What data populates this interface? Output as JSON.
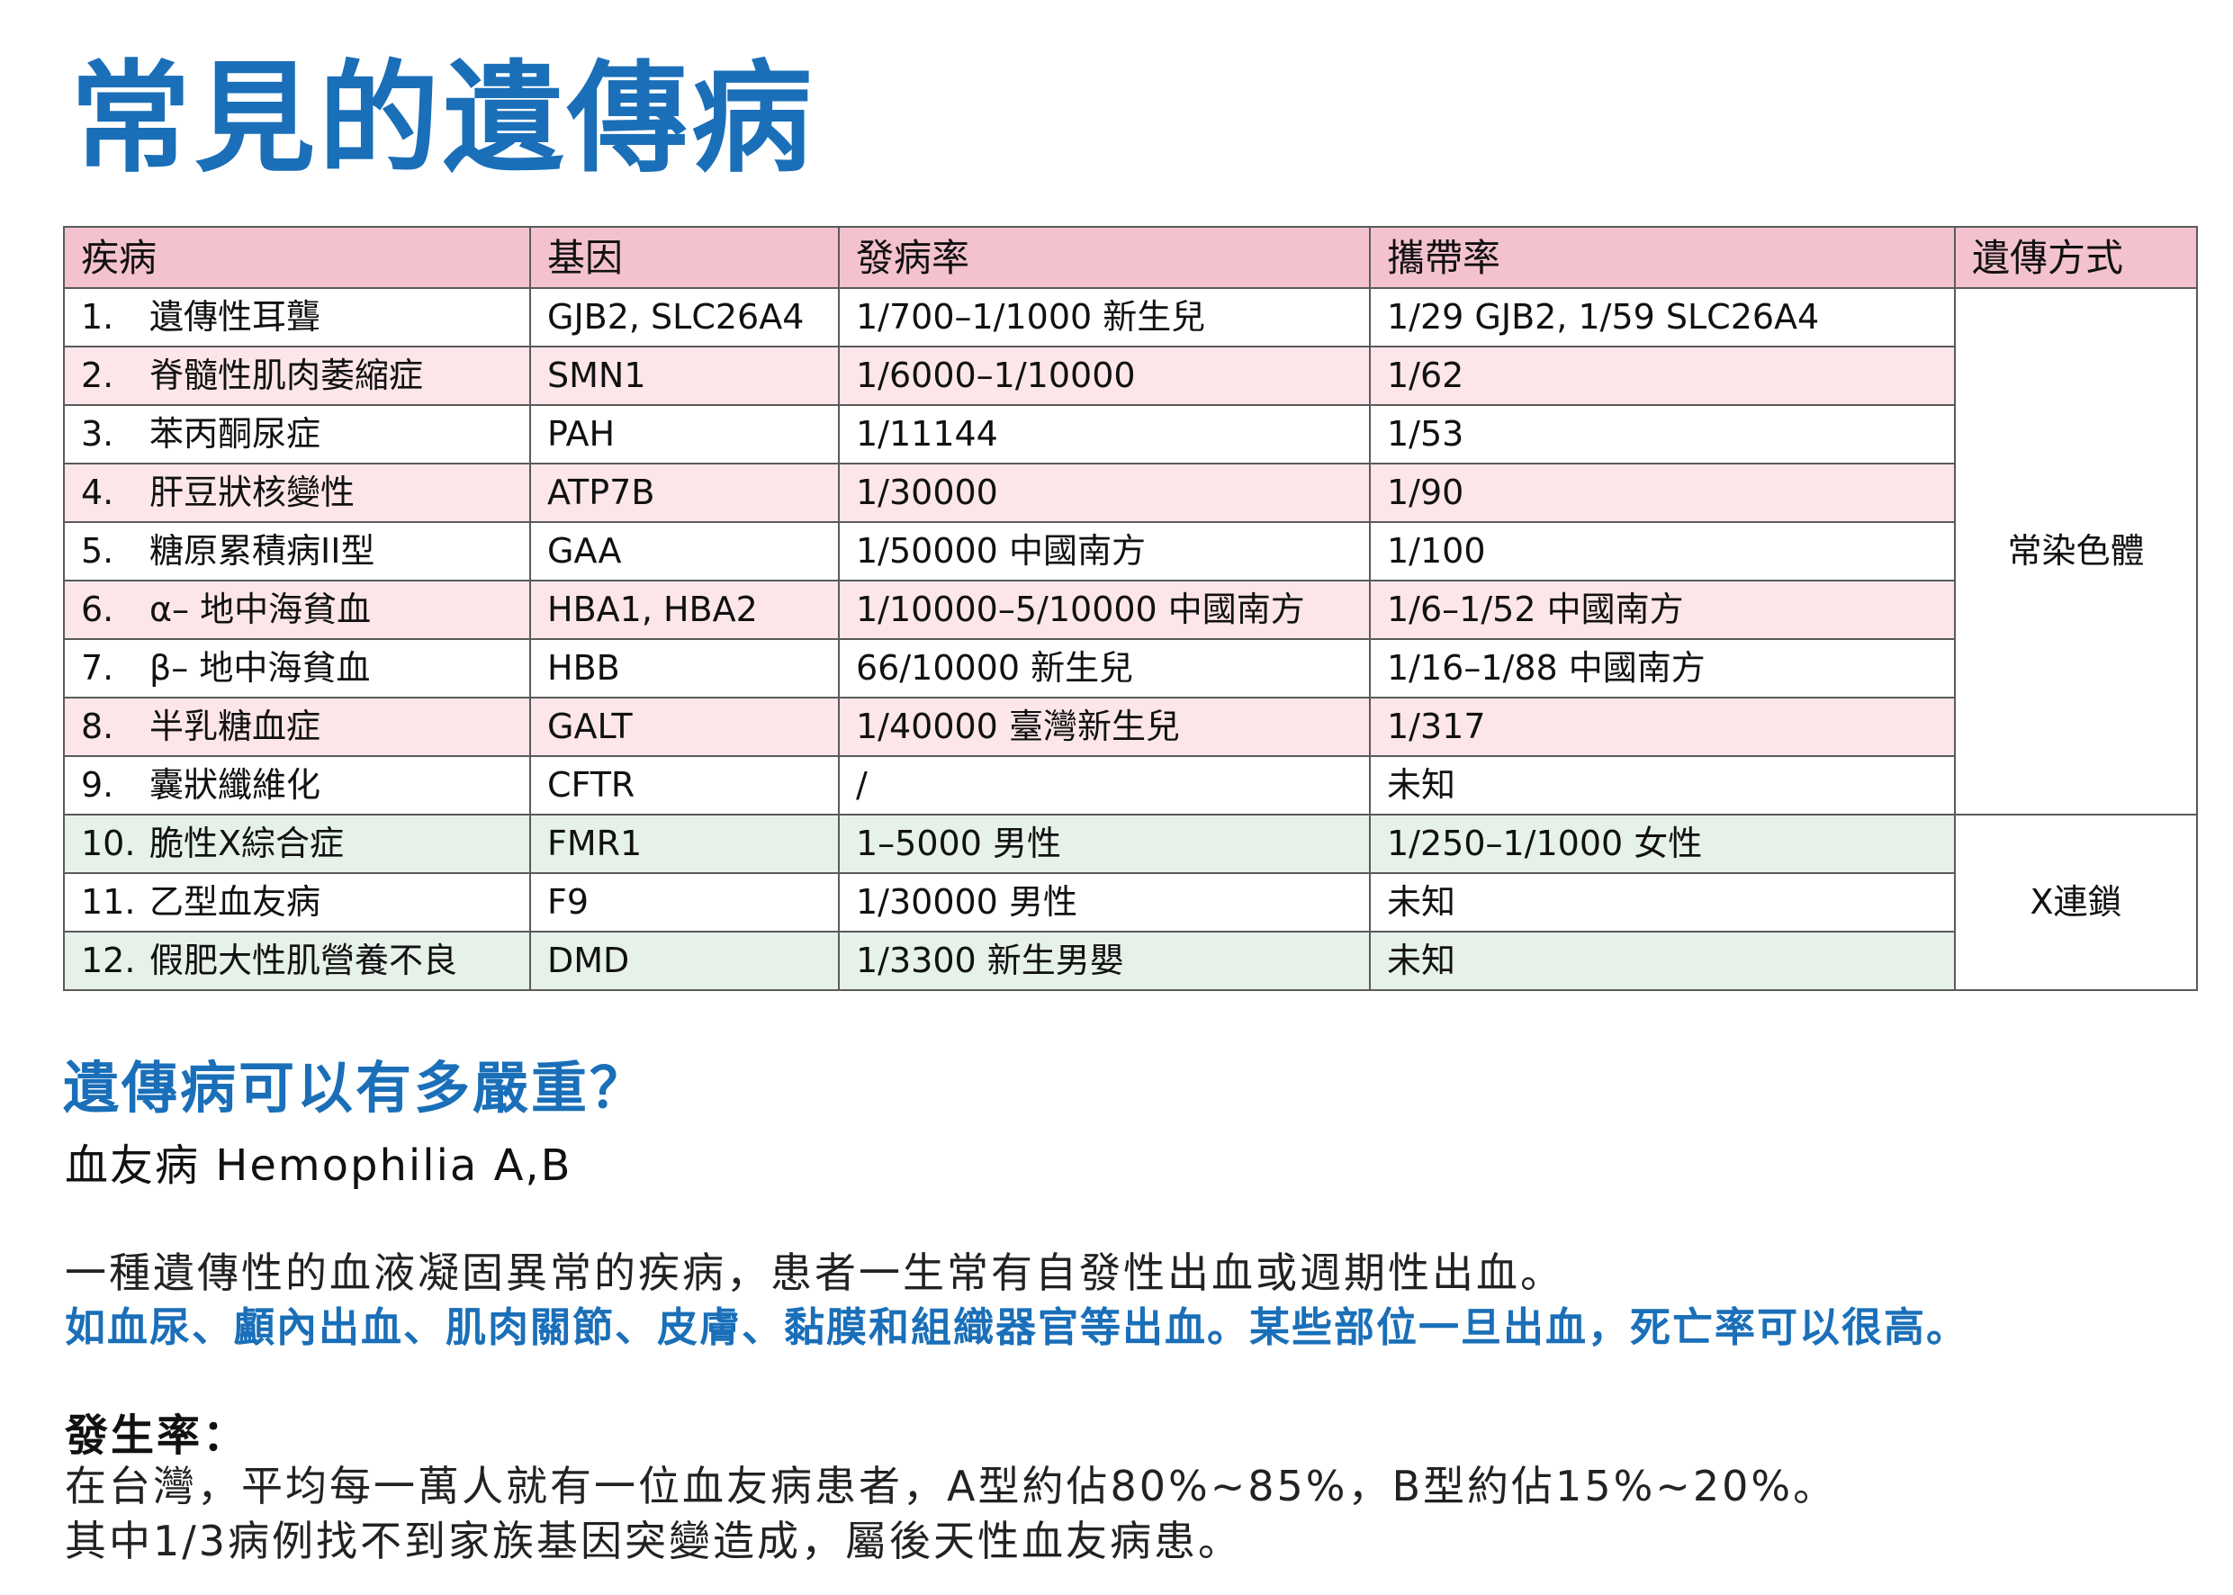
{
  "title": "常見的遺傳病",
  "table": {
    "headers": [
      "疾病",
      "基因",
      "發病率",
      "攜帶率",
      "遺傳方式"
    ],
    "rows": [
      {
        "num": "1.",
        "disease": "遺傳性耳聾",
        "gene": "GJB2, SLC26A4",
        "incidence": "1/700–1/1000 新生兒",
        "carrier": "1/29 GJB2, 1/59 SLC26A4"
      },
      {
        "num": "2.",
        "disease": "脊髓性肌肉萎縮症",
        "gene": "SMN1",
        "incidence": "1/6000–1/10000",
        "carrier": "1/62"
      },
      {
        "num": "3.",
        "disease": "苯丙酮尿症",
        "gene": "PAH",
        "incidence": "1/11144",
        "carrier": "1/53"
      },
      {
        "num": "4.",
        "disease": "肝豆狀核變性",
        "gene": "ATP7B",
        "incidence": "1/30000",
        "carrier": "1/90"
      },
      {
        "num": "5.",
        "disease": "糖原累積病II型",
        "gene": "GAA",
        "incidence": "1/50000 中國南方",
        "carrier": "1/100"
      },
      {
        "num": "6.",
        "disease": "α– 地中海貧血",
        "gene": "HBA1, HBA2",
        "incidence": "1/10000–5/10000 中國南方",
        "carrier": "1/6–1/52 中國南方"
      },
      {
        "num": "7.",
        "disease": "β– 地中海貧血",
        "gene": "HBB",
        "incidence": "66/10000 新生兒",
        "carrier": "1/16–1/88 中國南方"
      },
      {
        "num": "8.",
        "disease": "半乳糖血症",
        "gene": "GALT",
        "incidence": "1/40000 臺灣新生兒",
        "carrier": "1/317"
      },
      {
        "num": "9.",
        "disease": "囊狀纖維化",
        "gene": "CFTR",
        "incidence": "/",
        "carrier": "未知"
      },
      {
        "num": "10.",
        "disease": "脆性X綜合症",
        "gene": "FMR1",
        "incidence": "1–5000 男性",
        "carrier": "1/250–1/1000 女性"
      },
      {
        "num": "11.",
        "disease": "乙型血友病",
        "gene": "F9",
        "incidence": "1/30000 男性",
        "carrier": "未知"
      },
      {
        "num": "12.",
        "disease": "假肥大性肌營養不良",
        "gene": "DMD",
        "incidence": "1/3300 新生男嬰",
        "carrier": "未知"
      }
    ],
    "inheritance": {
      "autosomal": "常染色體",
      "x_linked": "X連鎖"
    }
  },
  "severity": {
    "heading": "遺傳病可以有多嚴重？",
    "subheading": "血友病 Hemophilia A,B",
    "description": "一種遺傳性的血液凝固異常的疾病，患者一生常有自發性出血或週期性出血。",
    "highlight": "如血尿、顱內出血、肌肉關節、皮膚、黏膜和組織器官等出血。某些部位一旦出血，死亡率可以很高。",
    "rate_label": "發生率：",
    "rate_line1": "在台灣，平均每一萬人就有一位血友病患者，A型約佔80%~85%，B型約佔15%~20%。",
    "rate_line2": "其中1/3病例找不到家族基因突變造成，屬後天性血友病患。"
  },
  "colors": {
    "title_blue": "#1a6fb8",
    "header_pink": "#f4c2cf",
    "row_pink": "#fde6e9",
    "row_green": "#e6f1e9"
  }
}
